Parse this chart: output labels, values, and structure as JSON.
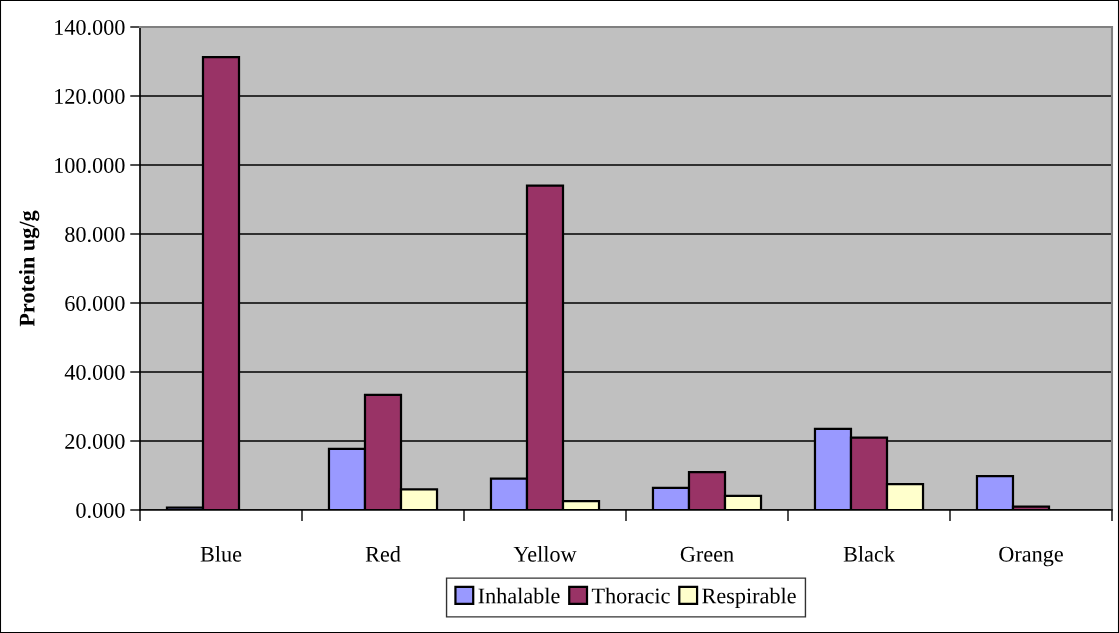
{
  "chart_data": {
    "type": "bar",
    "ylabel": "Protein ug/g",
    "categories": [
      "Blue",
      "Red",
      "Yellow",
      "Green",
      "Black",
      "Orange"
    ],
    "series": [
      {
        "name": "Inhalable",
        "color": "#9999ff",
        "values": [
          0.7,
          17.7,
          9.1,
          6.4,
          23.5,
          9.8
        ]
      },
      {
        "name": "Thoracic",
        "color": "#993366",
        "values": [
          131.3,
          33.4,
          94.0,
          11.0,
          21.0,
          1.0
        ]
      },
      {
        "name": "Respirable",
        "color": "#ffffcc",
        "values": [
          null,
          6.0,
          2.6,
          4.1,
          7.5,
          null
        ]
      }
    ],
    "ylim": [
      0,
      140
    ],
    "yticks": [
      {
        "value": 0,
        "label": "0.000"
      },
      {
        "value": 20,
        "label": "20.000"
      },
      {
        "value": 40,
        "label": "40.000"
      },
      {
        "value": 60,
        "label": "60.000"
      },
      {
        "value": 80,
        "label": "80.000"
      },
      {
        "value": 100,
        "label": "100.000"
      },
      {
        "value": 120,
        "label": "120.000"
      },
      {
        "value": 140,
        "label": "140.000"
      }
    ],
    "grid": "y",
    "legend": "bottom"
  }
}
